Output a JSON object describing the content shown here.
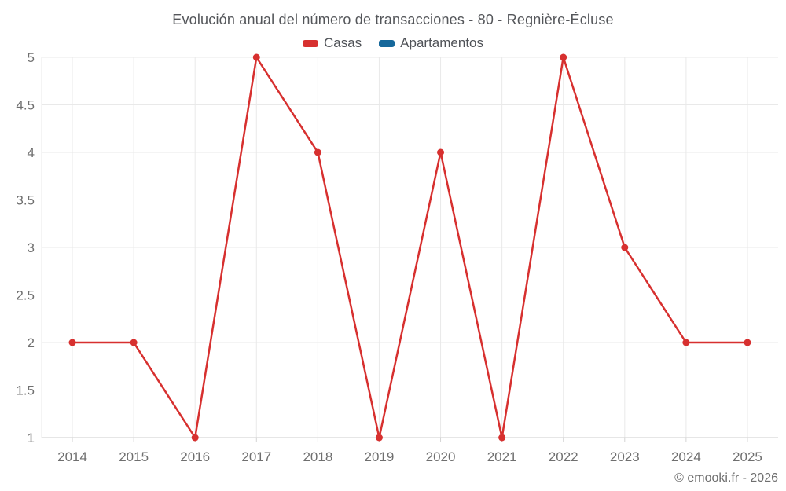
{
  "title": "Evolución anual del número de transacciones - 80 - Regnière-Écluse",
  "chart_data": {
    "type": "line",
    "title": "Evolución anual del número de transacciones - 80 - Regnière-Écluse",
    "categories": [
      "2014",
      "2015",
      "2016",
      "2017",
      "2018",
      "2019",
      "2020",
      "2021",
      "2022",
      "2023",
      "2024",
      "2025"
    ],
    "series": [
      {
        "name": "Casas",
        "color": "#d7302f",
        "values": [
          2,
          2,
          1,
          5,
          4,
          1,
          4,
          1,
          5,
          3,
          2,
          2
        ]
      },
      {
        "name": "Apartamentos",
        "color": "#16689b",
        "values": []
      }
    ],
    "xlabel": "",
    "ylabel": "",
    "ylim": [
      1,
      5
    ],
    "ytick_labels": [
      "1",
      "1.5",
      "2",
      "2.5",
      "3",
      "3.5",
      "4",
      "4.5",
      "5"
    ],
    "grid": true,
    "legend_position": "top",
    "marker": "circle",
    "colors": {
      "grid": "#e9e9e9",
      "axis_line": "#cdcdcd",
      "tick": "#d4d4d4",
      "axis_label": "#6f6f6f"
    }
  },
  "footer": {
    "credit": "© emooki.fr - 2026"
  }
}
